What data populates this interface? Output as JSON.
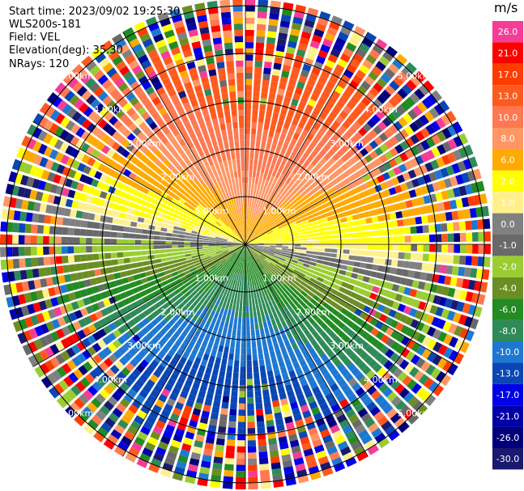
{
  "header": {
    "start_time": "Start time: 2023/09/02 19:25:30",
    "instrument": "WLS200s-181",
    "field": "Field: VEL",
    "elevation": "Elevation(deg): 35.30",
    "nrays": "NRays: 120"
  },
  "colorbar": {
    "unit": "m/s",
    "levels": [
      {
        "label": "26.0",
        "color": "#f53c96"
      },
      {
        "label": "21.0",
        "color": "#ff0000"
      },
      {
        "label": "17.0",
        "color": "#ff3c00"
      },
      {
        "label": "13.0",
        "color": "#ff5a1e"
      },
      {
        "label": "10.0",
        "color": "#ff7850"
      },
      {
        "label": "8.0",
        "color": "#ff9664"
      },
      {
        "label": "6.0",
        "color": "#ffaa00"
      },
      {
        "label": "2.0",
        "color": "#ffff00"
      },
      {
        "label": "1.0",
        "color": "#fff08c"
      },
      {
        "label": "0.0",
        "color": "#808080"
      },
      {
        "label": "-1.0",
        "color": "#696969"
      },
      {
        "label": "-2.0",
        "color": "#9acd32"
      },
      {
        "label": "-4.0",
        "color": "#6b8e23"
      },
      {
        "label": "-6.0",
        "color": "#228b22"
      },
      {
        "label": "-8.0",
        "color": "#2e8b57"
      },
      {
        "label": "-10.0",
        "color": "#1e78d2"
      },
      {
        "label": "-13.0",
        "color": "#0a46b4"
      },
      {
        "label": "-17.0",
        "color": "#0000e6"
      },
      {
        "label": "-21.0",
        "color": "#0000aa"
      },
      {
        "label": "-26.0",
        "color": "#00007a"
      },
      {
        "label": "-30.0",
        "color": "#191970"
      }
    ]
  },
  "chart_data": {
    "type": "polar_ppi",
    "field": "VEL",
    "nrays": 120,
    "range_rings_km": [
      1.0,
      2.0,
      3.0,
      4.0,
      5.0
    ],
    "ring_labels": [
      "1.00km",
      "2.00km",
      "3.00km",
      "4.00km",
      "5.00km"
    ],
    "max_range_km": 5.5,
    "spokes_deg": [
      0,
      30,
      60,
      90,
      120,
      150,
      180,
      210,
      240,
      270,
      300,
      330
    ]
  }
}
